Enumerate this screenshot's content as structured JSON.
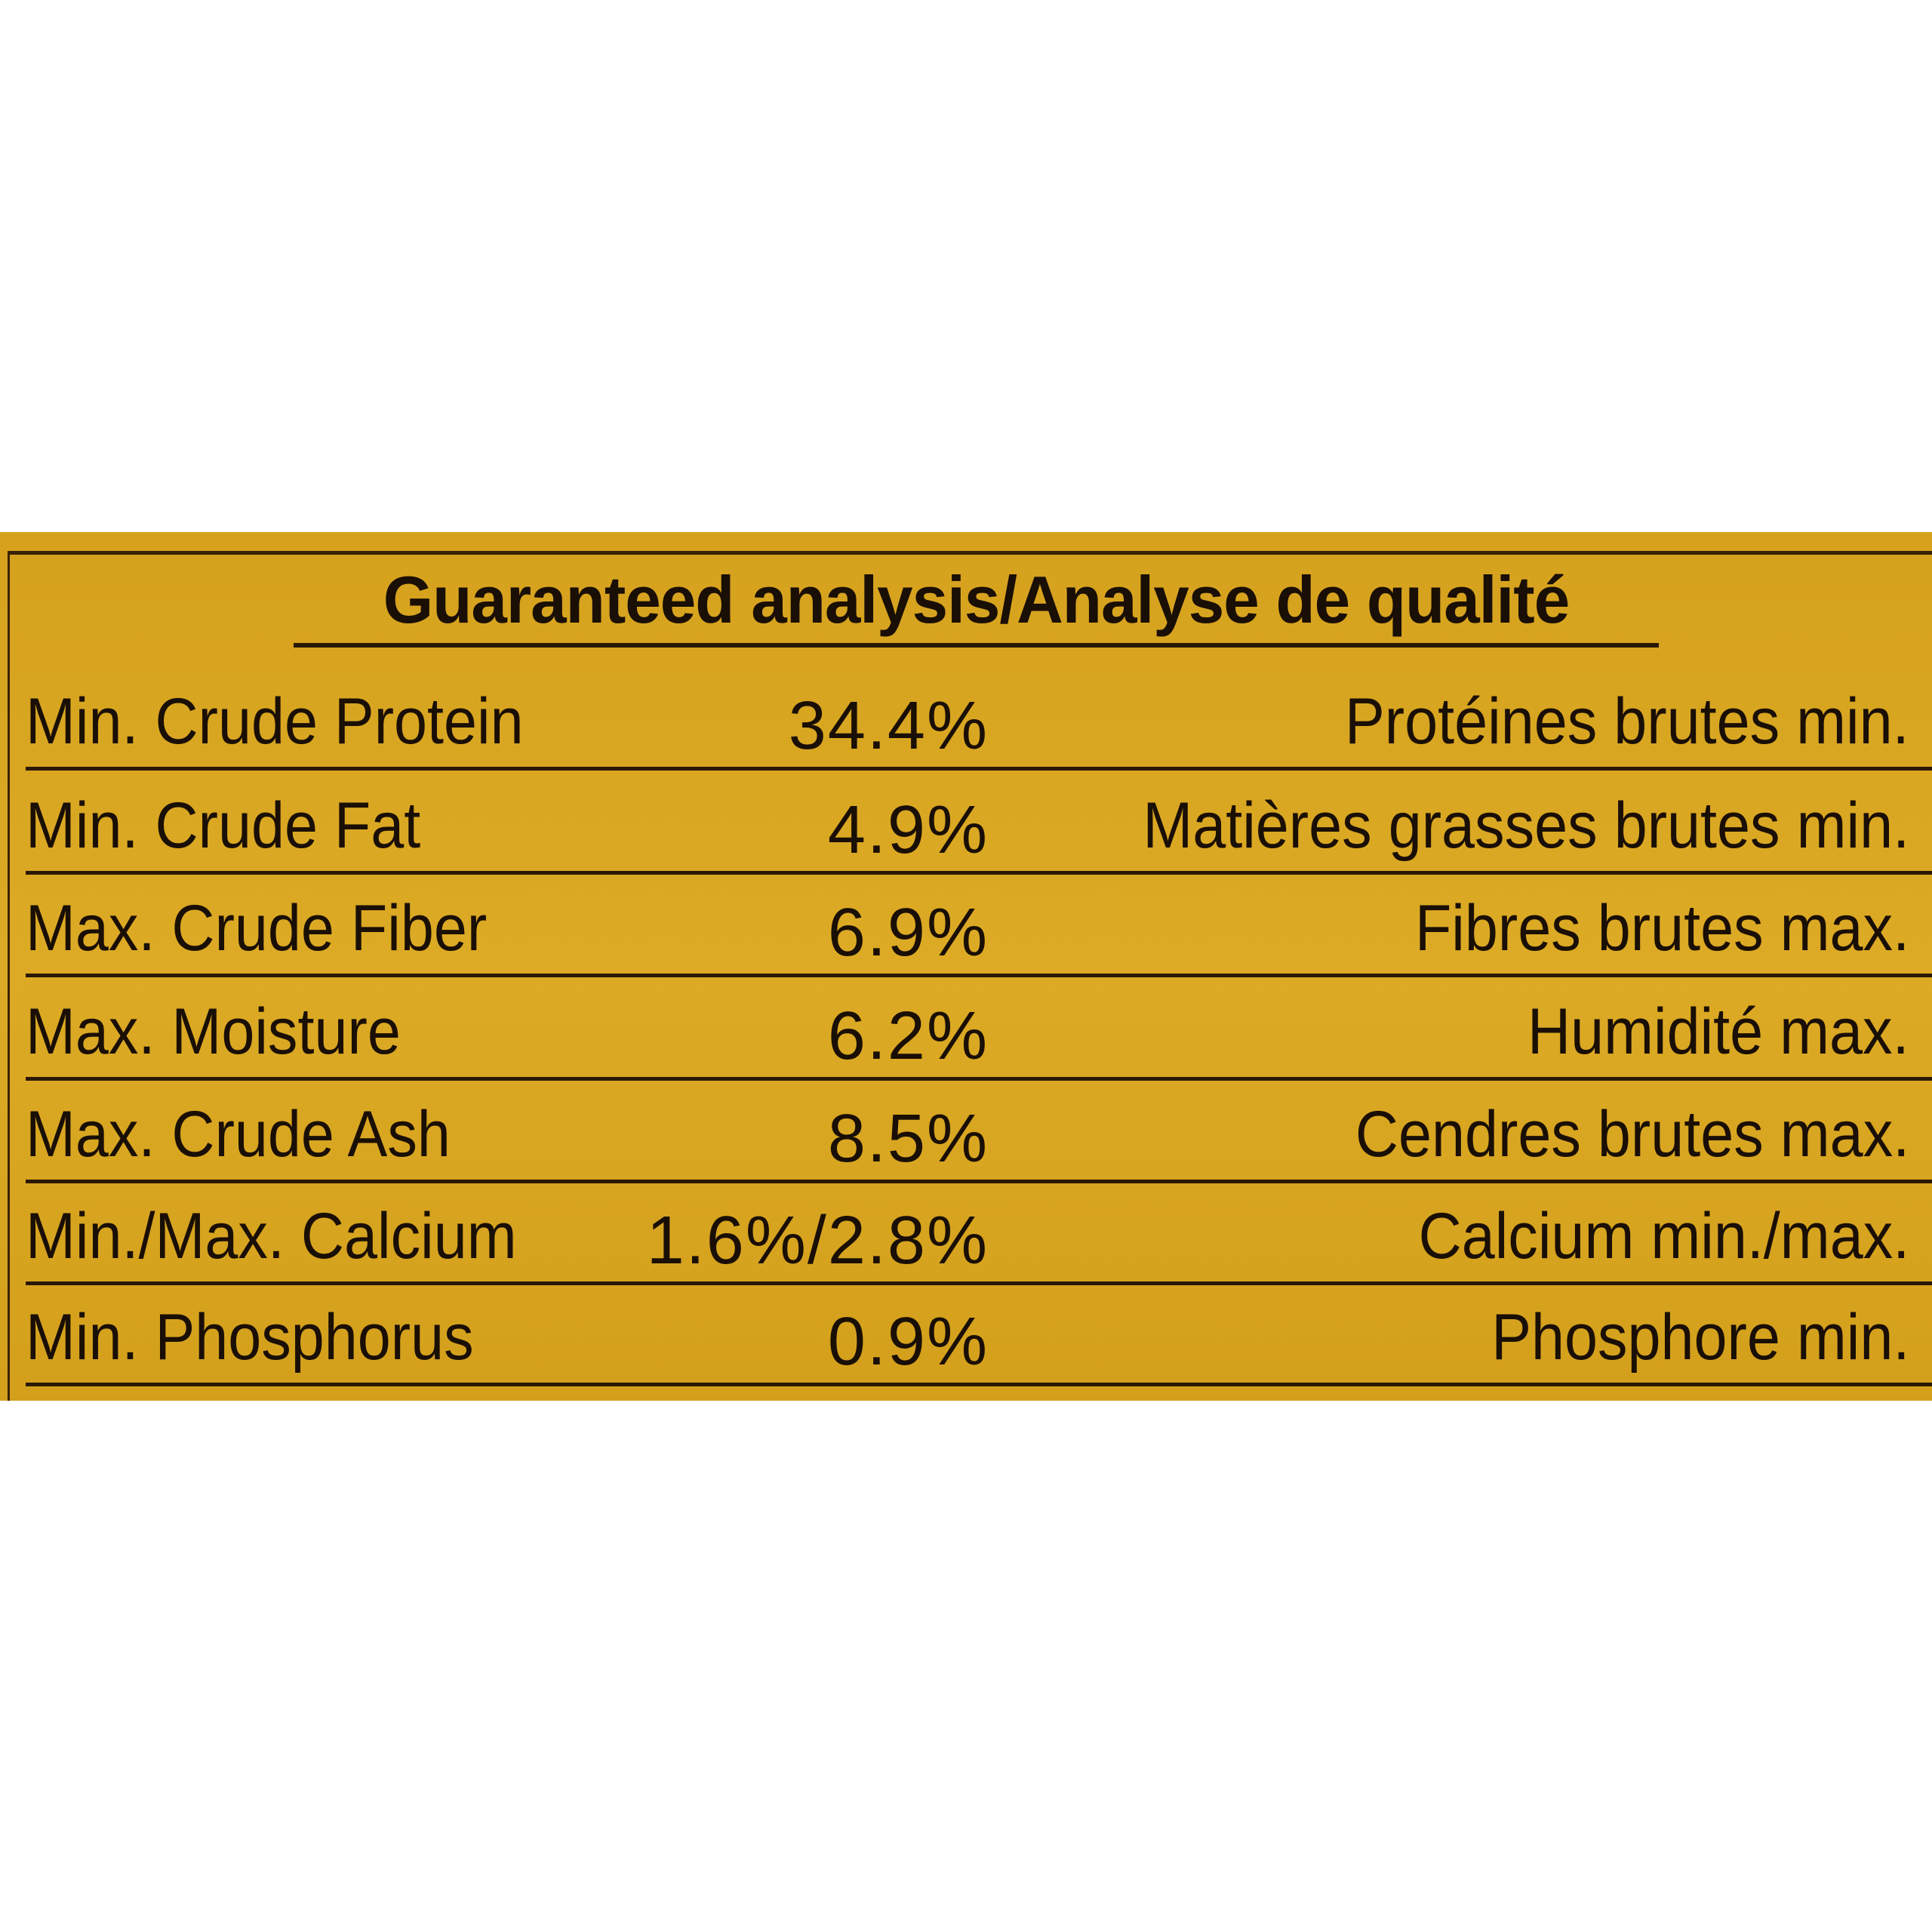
{
  "label": {
    "title": "Guaranteed analysis/Analyse de qualité",
    "background_color": "#d9a520",
    "text_color": "#1a0f05",
    "rows": [
      {
        "en": "Min. Crude Protein",
        "value": "34.4%",
        "fr": "Protéines brutes min."
      },
      {
        "en": "Min. Crude Fat",
        "value": "4.9%",
        "fr": "Matières grasses brutes min."
      },
      {
        "en": "Max. Crude Fiber",
        "value": "6.9%",
        "fr": "Fibres brutes max."
      },
      {
        "en": "Max. Moisture",
        "value": "6.2%",
        "fr": "Humidité max."
      },
      {
        "en": "Max. Crude Ash",
        "value": "8.5%",
        "fr": "Cendres brutes max."
      },
      {
        "en": "Min./Max. Calcium",
        "value": "1.6%/2.8%",
        "fr": "Calcium min./max."
      },
      {
        "en": "Min. Phosphorus",
        "value": "0.9%",
        "fr": "Phosphore min."
      }
    ]
  }
}
